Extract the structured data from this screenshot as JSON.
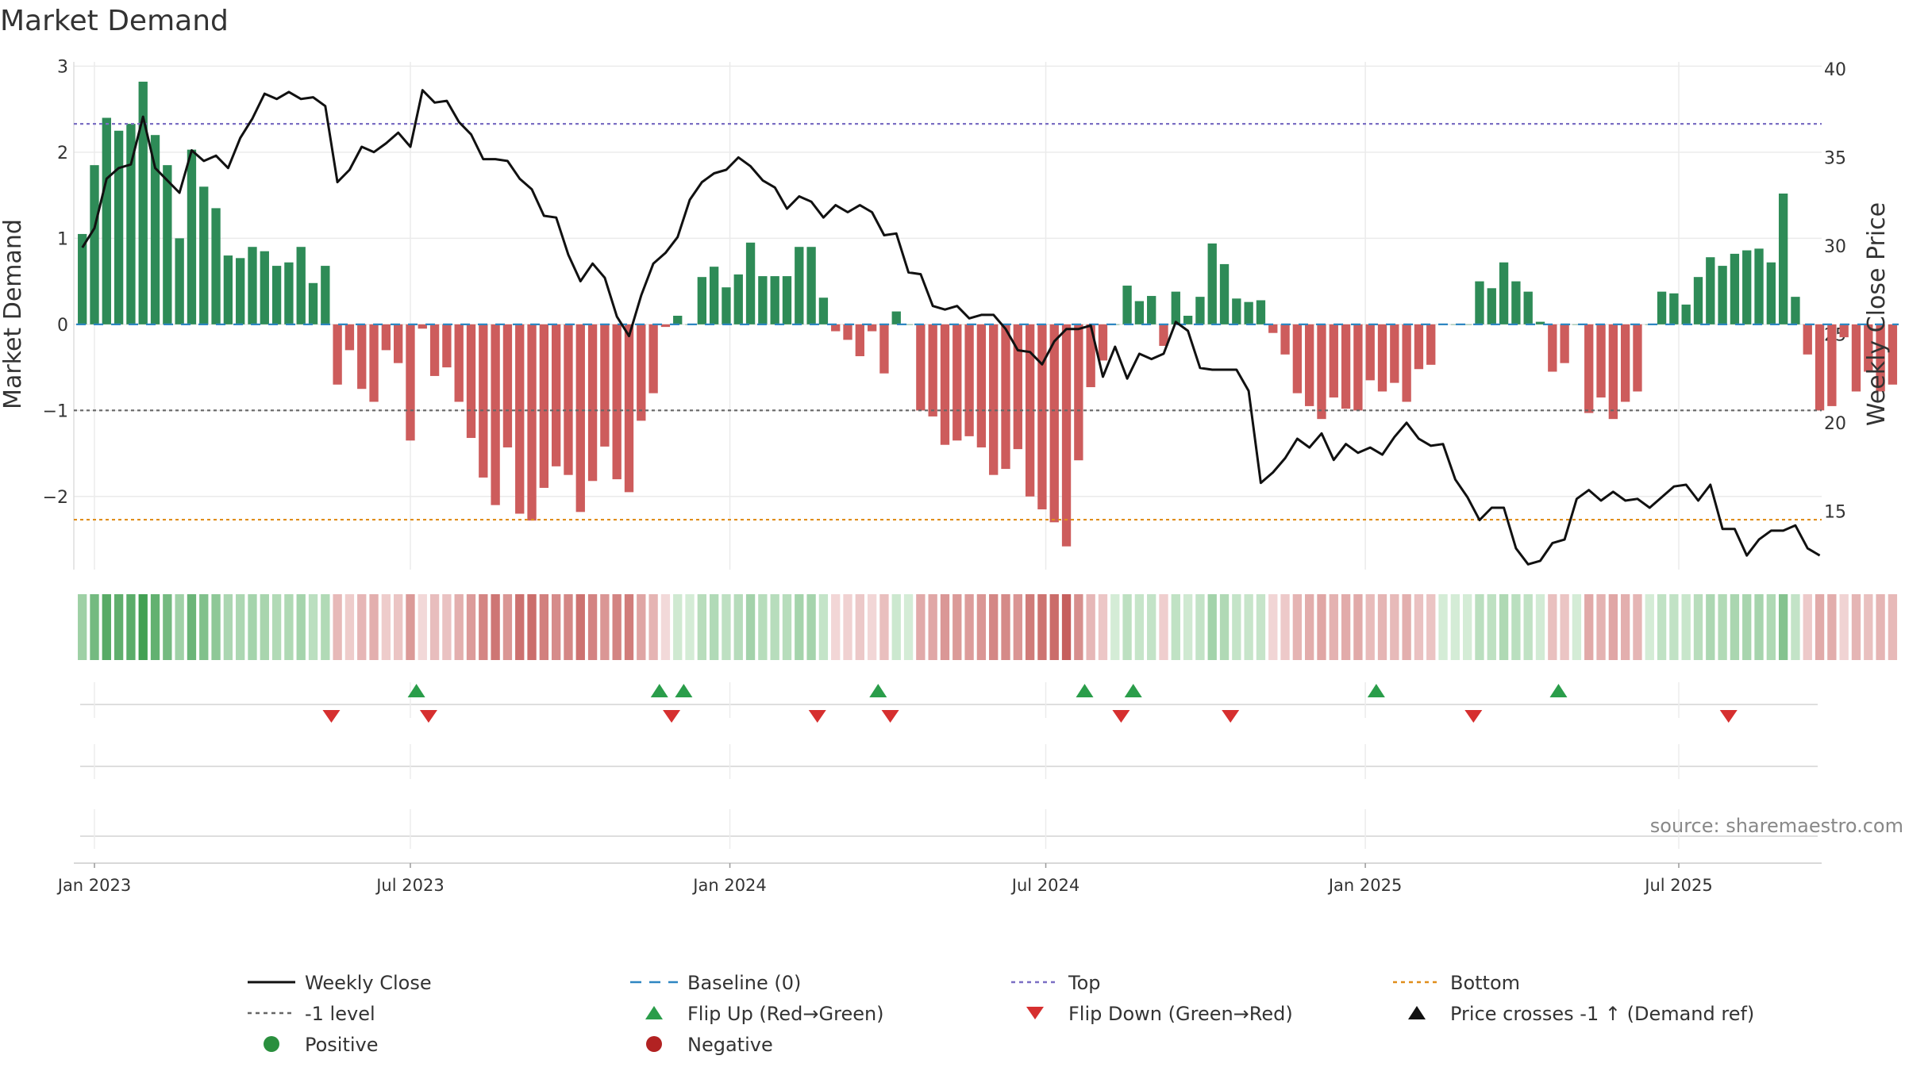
{
  "chart_data": {
    "type": "bar",
    "title": "Market Demand",
    "ylabel": "Market Demand",
    "y2label": "Weekly Close Price",
    "ylim": [
      -2.85,
      3.05
    ],
    "y2lim": [
      11.7,
      40.4
    ],
    "yticks": [
      3,
      2,
      1,
      0,
      -1,
      -2
    ],
    "ytick_labels": [
      "3",
      "2",
      "1",
      "0",
      "−1",
      "−2"
    ],
    "y2ticks": [
      40,
      35,
      30,
      25,
      20,
      15
    ],
    "y2tick_labels": [
      "40",
      "35",
      "30",
      "25",
      "20",
      "15"
    ],
    "x_ticks": [
      {
        "label": "Jan 2023",
        "week": 0
      },
      {
        "label": "Jul 2023",
        "week": 26
      },
      {
        "label": "Jan 2024",
        "week": 52.3
      },
      {
        "label": "Jul 2024",
        "week": 78.3
      },
      {
        "label": "Jan 2025",
        "week": 104.6
      },
      {
        "label": "Jul 2025",
        "week": 130.4
      }
    ],
    "first_week": -1.5,
    "reference_lines": {
      "top": 2.33,
      "minus_one": -1,
      "bottom": -2.27,
      "baseline": 0
    },
    "demand": [
      1.05,
      1.85,
      2.4,
      2.25,
      2.33,
      2.82,
      2.2,
      1.85,
      1.0,
      2.03,
      1.6,
      1.35,
      0.8,
      0.77,
      0.9,
      0.85,
      0.68,
      0.72,
      0.9,
      0.48,
      0.68,
      -0.7,
      -0.3,
      -0.75,
      -0.9,
      -0.3,
      -0.45,
      -1.35,
      -0.05,
      -0.6,
      -0.5,
      -0.9,
      -1.32,
      -1.78,
      -2.1,
      -1.43,
      -2.2,
      -2.28,
      -1.9,
      -1.65,
      -1.75,
      -2.18,
      -1.82,
      -1.42,
      -1.8,
      -1.95,
      -1.12,
      -0.8,
      -0.03,
      0.1,
      0.0,
      0.55,
      0.67,
      0.43,
      0.58,
      0.95,
      0.56,
      0.56,
      0.56,
      0.9,
      0.9,
      0.31,
      -0.08,
      -0.18,
      -0.37,
      -0.08,
      -0.57,
      0.15,
      0.0,
      -1.0,
      -1.07,
      -1.4,
      -1.35,
      -1.3,
      -1.43,
      -1.75,
      -1.68,
      -1.45,
      -2.0,
      -2.15,
      -2.3,
      -2.58,
      -1.58,
      -0.73,
      -0.42,
      0.0,
      0.45,
      0.27,
      0.33,
      -0.25,
      0.38,
      0.1,
      0.32,
      0.94,
      0.7,
      0.3,
      0.26,
      0.28,
      -0.1,
      -0.35,
      -0.8,
      -0.95,
      -1.1,
      -0.85,
      -0.98,
      -1.0,
      -0.65,
      -0.78,
      -0.68,
      -0.9,
      -0.52,
      -0.47,
      0.0,
      0.0,
      0.0,
      0.5,
      0.42,
      0.72,
      0.5,
      0.38,
      0.03,
      -0.55,
      -0.45,
      0.0,
      -1.03,
      -0.85,
      -1.1,
      -0.9,
      -0.78,
      0.0,
      0.38,
      0.36,
      0.23,
      0.55,
      0.78,
      0.68,
      0.82,
      0.86,
      0.88,
      0.72,
      1.52,
      0.32,
      -0.35,
      -1.0,
      -0.95,
      -0.15,
      -0.78,
      -0.55,
      -0.78,
      -0.7
    ],
    "price": [
      29.9,
      31.0,
      33.8,
      34.4,
      34.6,
      37.3,
      34.4,
      33.7,
      33.0,
      35.4,
      34.8,
      35.1,
      34.4,
      36.1,
      37.2,
      38.6,
      38.3,
      38.7,
      38.3,
      38.4,
      37.9,
      33.6,
      34.3,
      35.6,
      35.3,
      35.8,
      36.4,
      35.6,
      38.8,
      38.1,
      38.2,
      37.0,
      36.3,
      34.9,
      34.9,
      34.8,
      33.8,
      33.2,
      31.7,
      31.6,
      29.5,
      28.0,
      29.0,
      28.2,
      26.0,
      24.9,
      27.2,
      29.0,
      29.6,
      30.5,
      32.6,
      33.6,
      34.1,
      34.3,
      35.0,
      34.5,
      33.7,
      33.3,
      32.1,
      32.8,
      32.5,
      31.6,
      32.3,
      31.9,
      32.3,
      31.9,
      30.6,
      30.7,
      28.5,
      28.4,
      26.6,
      26.4,
      26.6,
      25.9,
      26.1,
      26.1,
      25.3,
      24.1,
      24.0,
      23.3,
      24.6,
      25.3,
      25.3,
      25.5,
      22.6,
      24.3,
      22.5,
      23.9,
      23.6,
      23.9,
      25.7,
      25.2,
      23.1,
      23.0,
      23.0,
      23.0,
      21.8,
      16.6,
      17.2,
      18.0,
      19.1,
      18.6,
      19.4,
      17.9,
      18.8,
      18.3,
      18.6,
      18.2,
      19.2,
      20.0,
      19.1,
      18.7,
      18.8,
      16.8,
      15.8,
      14.5,
      15.2,
      15.2,
      12.9,
      12.0,
      12.2,
      13.2,
      13.4,
      15.7,
      16.2,
      15.6,
      16.1,
      15.6,
      15.7,
      15.2,
      15.8,
      16.4,
      16.5,
      15.6,
      16.5,
      14.0,
      14.0,
      12.5,
      13.4,
      13.9,
      13.9,
      14.2,
      12.9,
      12.5
    ],
    "flip_up_weeks": [
      26.5,
      46.5,
      48.5,
      64.5,
      81.5,
      85.5,
      105.5,
      120.5
    ],
    "flip_down_weeks": [
      19.5,
      27.5,
      47.5,
      59.5,
      65.5,
      84.5,
      93.5,
      113.5,
      134.5
    ],
    "legend": [
      {
        "label": "Weekly Close",
        "symbol": "line-solid",
        "color": "#111111"
      },
      {
        "label": "Baseline (0)",
        "symbol": "line-dashed",
        "color": "#2e86c1"
      },
      {
        "label": "Top",
        "symbol": "line-dotted",
        "color": "#7b6fc4"
      },
      {
        "label": "Bottom",
        "symbol": "line-dotted",
        "color": "#e08e1b"
      },
      {
        "label": "-1 level",
        "symbol": "line-dotted",
        "color": "#666666"
      },
      {
        "label": "Flip Up (Red→Green)",
        "symbol": "triangle-up",
        "color": "#2a9d4a"
      },
      {
        "label": "Flip Down (Green→Red)",
        "symbol": "triangle-down",
        "color": "#d62f2f"
      },
      {
        "label": "Price crosses -1 ↑ (Demand ref)",
        "symbol": "triangle-up",
        "color": "#111111"
      },
      {
        "label": "Positive",
        "symbol": "dot",
        "color": "#2a8f3e"
      },
      {
        "label": "Negative",
        "symbol": "dot",
        "color": "#b22222"
      }
    ],
    "source": "source: sharemaestro.com"
  },
  "colors": {
    "positive_bar": "#2e8b57",
    "negative_bar": "#cd5c5c",
    "price_line": "#111111"
  }
}
